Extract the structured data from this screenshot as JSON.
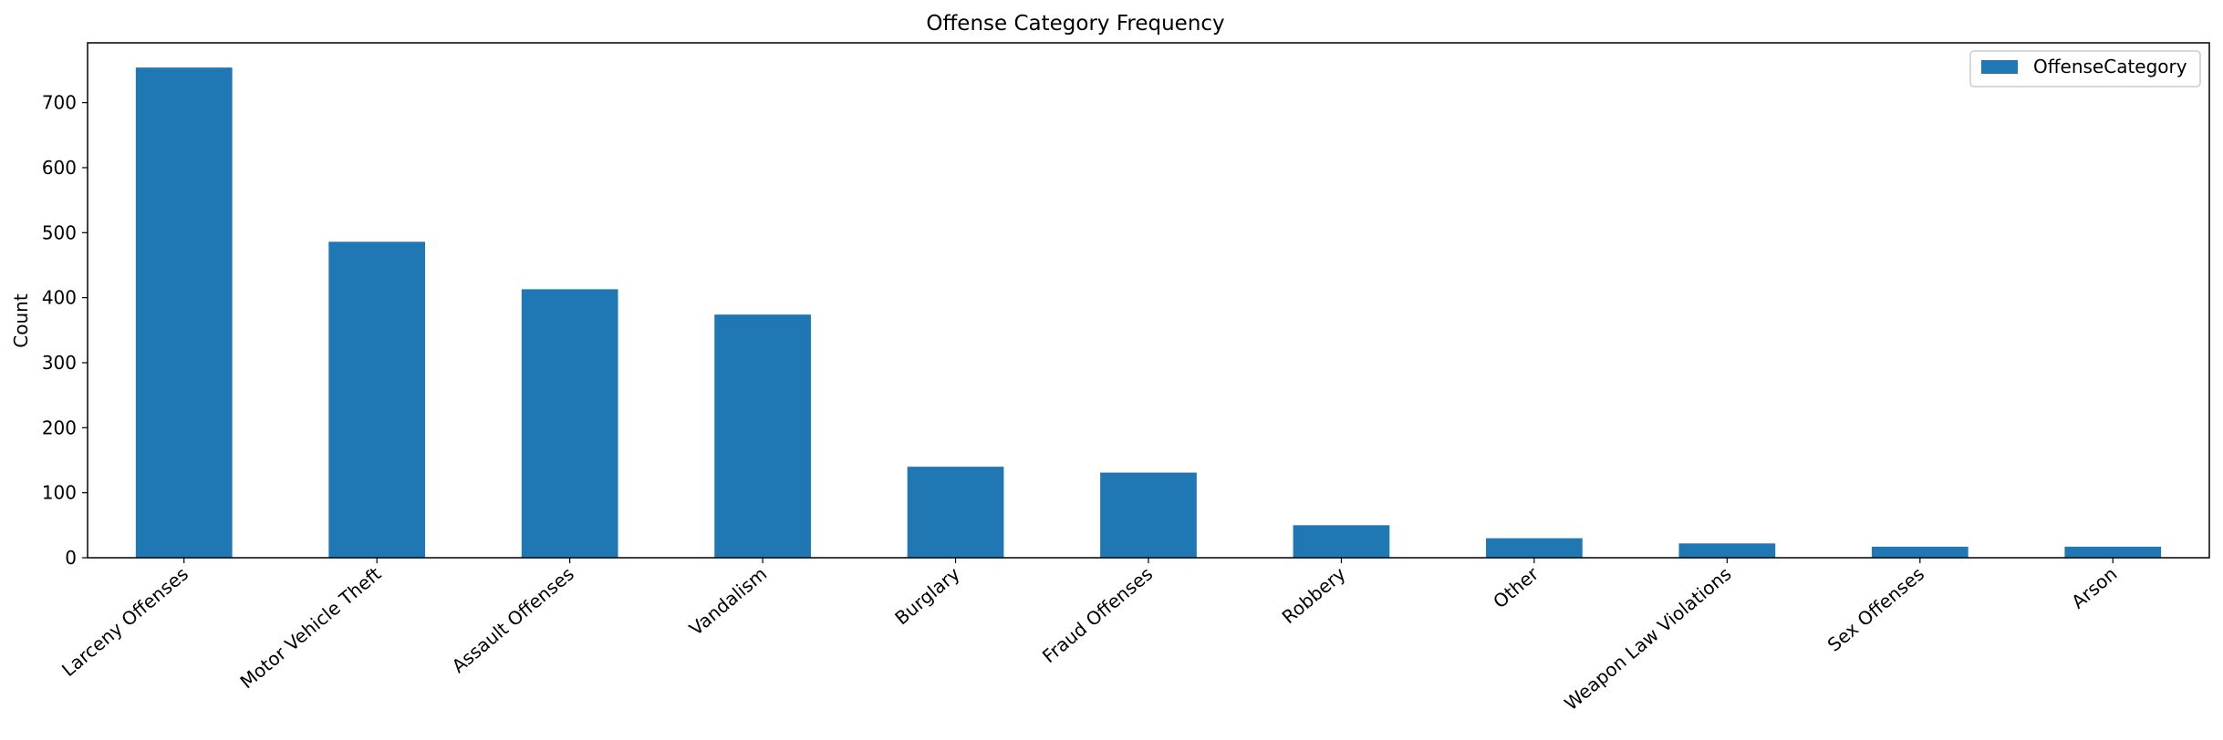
{
  "chart_data": {
    "type": "bar",
    "title": "Offense Category Frequency",
    "xlabel": "",
    "ylabel": "Count",
    "categories": [
      "Larceny Offenses",
      "Motor Vehicle Theft",
      "Assault Offenses",
      "Vandalism",
      "Burglary",
      "Fraud Offenses",
      "Robbery",
      "Other",
      "Weapon Law Violations",
      "Sex Offenses",
      "Arson"
    ],
    "series": [
      {
        "name": "OffenseCategory",
        "values": [
          754,
          486,
          413,
          374,
          140,
          131,
          50,
          30,
          22,
          17,
          17
        ]
      }
    ],
    "ylim": [
      0,
      792
    ],
    "yticks": [
      0,
      100,
      200,
      300,
      400,
      500,
      600,
      700
    ],
    "grid": false,
    "legend": "top-right",
    "bar_color": "#1f77b4"
  }
}
